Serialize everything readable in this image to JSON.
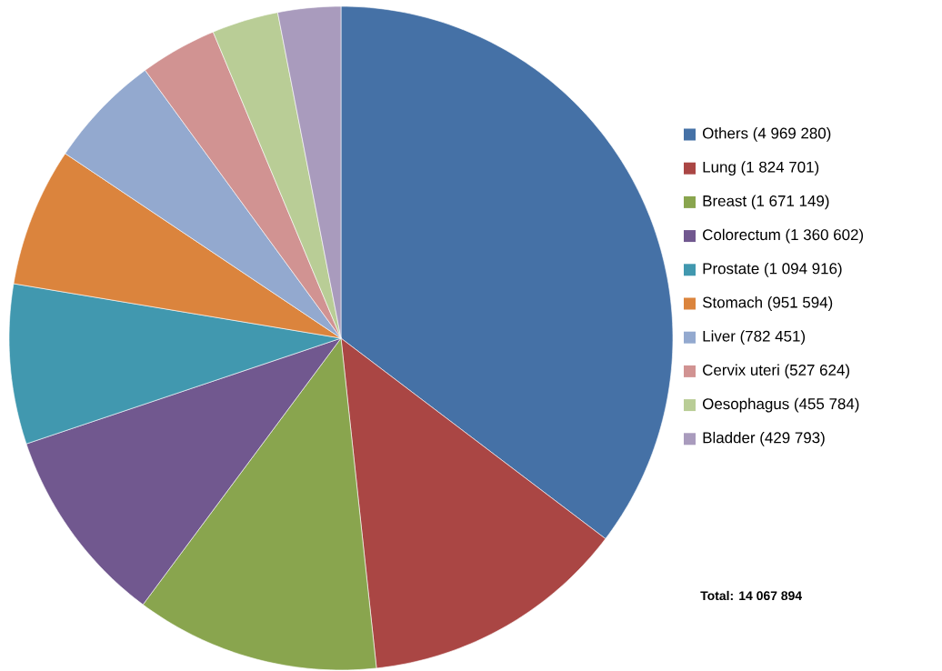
{
  "chart_data": {
    "type": "pie",
    "categories": [
      "Others (4 969 280)",
      "Lung (1 824 701)",
      "Breast (1 671 149)",
      "Colorectum (1 360 602)",
      "Prostate (1 094 916)",
      "Stomach (951 594)",
      "Liver (782 451)",
      "Cervix uteri (527 624)",
      "Oesophagus (455 784)",
      "Bladder (429 793)"
    ],
    "values": [
      4969280,
      1824701,
      1671149,
      1360602,
      1094916,
      951594,
      782451,
      527624,
      455784,
      429793
    ],
    "colors": [
      "#4571a6",
      "#aa4644",
      "#89a54e",
      "#71588f",
      "#4198af",
      "#db843d",
      "#93a9cf",
      "#d19392",
      "#b9cd96",
      "#a99bbd"
    ],
    "legend": "right",
    "annotations": [
      "Total: 14 067 894"
    ]
  }
}
